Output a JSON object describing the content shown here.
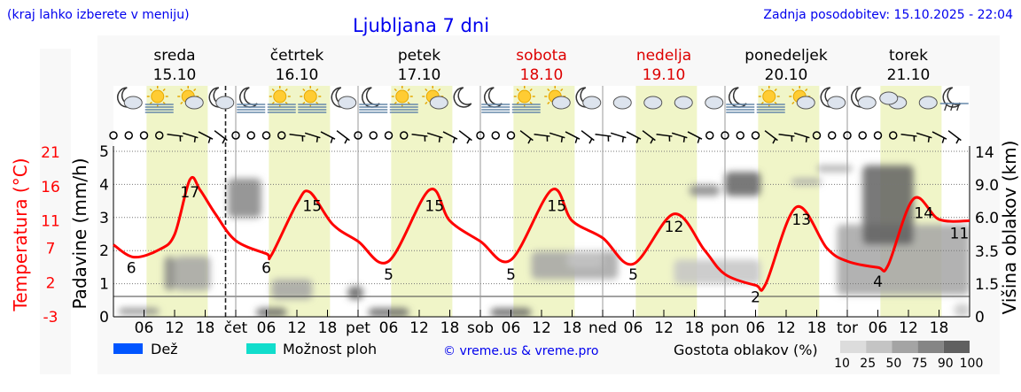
{
  "header": {
    "hint": "(kraj lahko izberete v meniju)",
    "title": "Ljubljana 7 dni",
    "updated": "Zadnja posodobitev: 15.10.2025 - 22:04"
  },
  "colors": {
    "accent_blue": "#0000ee",
    "temperature": "#ff0000",
    "weekend": "#dd0000",
    "daylight": "#f0f5c8",
    "rain": "#0055ff",
    "shower": "#11ddcc"
  },
  "days": [
    {
      "name": "sreda",
      "date": "15.10",
      "weekend": false
    },
    {
      "name": "četrtek",
      "date": "16.10",
      "weekend": false
    },
    {
      "name": "petek",
      "date": "17.10",
      "weekend": false
    },
    {
      "name": "sobota",
      "date": "18.10",
      "weekend": true
    },
    {
      "name": "nedelja",
      "date": "19.10",
      "weekend": true
    },
    {
      "name": "ponedeljek",
      "date": "20.10",
      "weekend": false
    },
    {
      "name": "torek",
      "date": "21.10",
      "weekend": false
    }
  ],
  "weather_icons": [
    "moon-cloud",
    "sun-fog",
    "sun-cloud",
    "moon-cloud",
    "moon-fog",
    "sun-fog",
    "sun-fog",
    "moon-cloud",
    "moon-fog",
    "sun-fog",
    "sun-cloud",
    "moon",
    "moon-fog",
    "sun-fog",
    "sun-cloud",
    "moon-cloud",
    "cloud",
    "cloud",
    "cloud",
    "cloud",
    "moon-fog",
    "sun-fog",
    "sun-cloud",
    "moon-cloud",
    "moon-cloud",
    "clouds",
    "cloud",
    "moon-rain"
  ],
  "wind_symbols": [
    "calm",
    "calm",
    "calm",
    "calm",
    "barb",
    "barb",
    "barb",
    "barb",
    "calm",
    "calm",
    "calm",
    "calm",
    "barb",
    "barb",
    "barb",
    "barb",
    "calm",
    "calm",
    "calm",
    "calm",
    "barb",
    "barb",
    "barb",
    "barb",
    "calm",
    "calm",
    "calm",
    "barb",
    "barb",
    "barb",
    "barb",
    "barb",
    "barb",
    "barb",
    "barb",
    "barb",
    "barb",
    "barb",
    "barb",
    "calm",
    "calm",
    "calm",
    "calm",
    "barb",
    "barb",
    "barb",
    "calm",
    "calm",
    "calm",
    "calm",
    "calm",
    "calm",
    "barb",
    "barb",
    "barb",
    "barb"
  ],
  "chart_data": {
    "type": "line",
    "title": "Ljubljana 7 dni",
    "x_ticks": [
      "06",
      "12",
      "18",
      "čet",
      "06",
      "12",
      "18",
      "pet",
      "06",
      "12",
      "18",
      "sob",
      "06",
      "12",
      "18",
      "ned",
      "06",
      "12",
      "18",
      "pon",
      "06",
      "12",
      "18",
      "tor",
      "06",
      "12",
      "18"
    ],
    "axes": {
      "temperature": {
        "label": "Temperatura (°C)",
        "ticks": [
          "21",
          "16",
          "11",
          "7",
          "2",
          "-3"
        ],
        "range": [
          -3,
          21
        ]
      },
      "precipitation": {
        "label": "Padavine (mm/h)",
        "ticks": [
          "5",
          "4",
          "3",
          "2",
          "1",
          "0"
        ],
        "range": [
          0,
          5
        ]
      },
      "cloud_height": {
        "label": "Višina oblakov (km)",
        "ticks": [
          "14",
          "9.0",
          "6.0",
          "3.5",
          "1.5",
          "0"
        ]
      }
    },
    "grid": true,
    "current_time_hour": 22,
    "temperature_series": {
      "hours": [
        0,
        4,
        9,
        12,
        15,
        17,
        20,
        24,
        30,
        31,
        36,
        38.5,
        43,
        48,
        54,
        62,
        66,
        72,
        78,
        86,
        90,
        96,
        102,
        110,
        116,
        120,
        126,
        128,
        134,
        140,
        144,
        150,
        152,
        157,
        162,
        168
      ],
      "values": [
        7.5,
        5.7,
        6.8,
        9,
        17,
        15.5,
        12,
        8.1,
        6.2,
        6,
        13.5,
        15.2,
        10.5,
        8,
        5.1,
        15.5,
        11,
        8,
        5.3,
        15.5,
        11,
        8.5,
        4.7,
        12,
        6.7,
        3.2,
        1.6,
        1.8,
        13,
        7,
        5.1,
        4.2,
        4.5,
        14.2,
        11.2,
        11
      ]
    },
    "temperature_labels": [
      {
        "hour": 3.5,
        "value": "6"
      },
      {
        "hour": 15,
        "value": "17"
      },
      {
        "hour": 30,
        "value": "6"
      },
      {
        "hour": 39,
        "value": "15"
      },
      {
        "hour": 54,
        "value": "5"
      },
      {
        "hour": 63,
        "value": "15"
      },
      {
        "hour": 78,
        "value": "5"
      },
      {
        "hour": 87,
        "value": "15"
      },
      {
        "hour": 102,
        "value": "5"
      },
      {
        "hour": 110,
        "value": "12"
      },
      {
        "hour": 126,
        "value": "2"
      },
      {
        "hour": 135,
        "value": "13"
      },
      {
        "hour": 150,
        "value": "4"
      },
      {
        "hour": 159,
        "value": "14"
      },
      {
        "hour": 166,
        "value": "11"
      }
    ],
    "cloud_cover": [
      {
        "h": [
          1,
          9
        ],
        "km": [
          0.1,
          0.4
        ],
        "density": 75
      },
      {
        "h": [
          10,
          12
        ],
        "km": [
          1.2,
          3.2
        ],
        "density": 75
      },
      {
        "h": [
          12,
          19
        ],
        "km": [
          1.2,
          3.2
        ],
        "density": 50
      },
      {
        "h": [
          22.5,
          29
        ],
        "km": [
          6,
          10
        ],
        "density": 75
      },
      {
        "h": [
          28,
          34
        ],
        "km": [
          0,
          0.4
        ],
        "density": 90
      },
      {
        "h": [
          31,
          39
        ],
        "km": [
          0.8,
          1.8
        ],
        "density": 50
      },
      {
        "h": [
          46,
          49
        ],
        "km": [
          0.8,
          1.4
        ],
        "density": 90
      },
      {
        "h": [
          50,
          58
        ],
        "km": [
          0,
          0.4
        ],
        "density": 90
      },
      {
        "h": [
          74,
          82
        ],
        "km": [
          0,
          0.4
        ],
        "density": 90
      },
      {
        "h": [
          82,
          99
        ],
        "km": [
          1.8,
          3.5
        ],
        "density": 50
      },
      {
        "h": [
          89,
          96
        ],
        "km": [
          2.5,
          3.5
        ],
        "density": 25
      },
      {
        "h": [
          110,
          127
        ],
        "km": [
          1.5,
          3
        ],
        "density": 25
      },
      {
        "h": [
          113,
          119
        ],
        "km": [
          8,
          9
        ],
        "density": 75
      },
      {
        "h": [
          120,
          127
        ],
        "km": [
          8,
          11
        ],
        "density": 90
      },
      {
        "h": [
          133,
          139
        ],
        "km": [
          9,
          10
        ],
        "density": 50
      },
      {
        "h": [
          138,
          145
        ],
        "km": [
          11,
          12
        ],
        "density": 50
      },
      {
        "h": [
          142,
          168
        ],
        "km": [
          1,
          5.5
        ],
        "density": 50
      },
      {
        "h": [
          147,
          157
        ],
        "km": [
          4,
          12
        ],
        "density": 90
      },
      {
        "h": [
          165,
          168
        ],
        "km": [
          0,
          0.6
        ],
        "density": 25
      }
    ]
  },
  "legend": {
    "rain": "Dež",
    "shower": "Možnost ploh",
    "credit": "© vreme.us & vreme.pro",
    "cloud_density": "Gostota oblakov (%)",
    "density_levels": [
      "10",
      "25",
      "50",
      "75",
      "90",
      "100"
    ]
  }
}
